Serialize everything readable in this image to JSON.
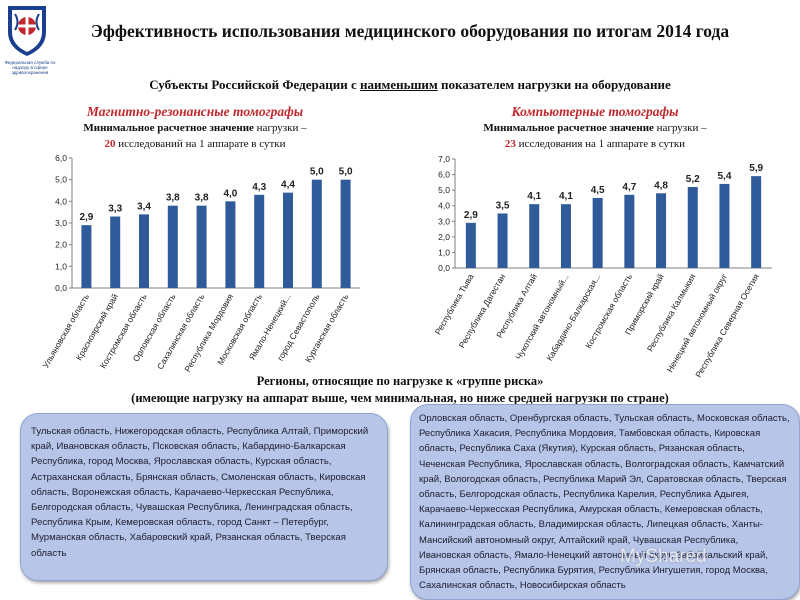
{
  "logo": {
    "caption": "Федеральная служба по надзору в сфере здравоохранения",
    "colors": {
      "shield": "#1b3f8f",
      "accent": "#c0282d"
    }
  },
  "title": "Эффективность использования медицинского оборудования по итогам 2014 года",
  "subtitle": {
    "before": "Субъекты Российской Федерации с ",
    "underlined": "наименьшим",
    "after": " показателем нагрузки на оборудование"
  },
  "mri": {
    "heading": "Магнитно-резонансные томографы",
    "note_bold": "Минимальное расчетное значение",
    "note_mid": " нагрузки –",
    "note_num": "20",
    "note_tail": " исследований на 1 аппарате в сутки"
  },
  "ct": {
    "heading": "Компьютерные томографы",
    "note_bold": "Минимальное расчетное значение",
    "note_mid": " нагрузки –",
    "note_num": "23",
    "note_tail": " исследования на 1 аппарате в сутки"
  },
  "chart_data": [
    {
      "type": "bar",
      "title": "Магнитно-резонансные томографы",
      "categories": [
        "Ульяновская область",
        "Красноярский край",
        "Костромская область",
        "Орловская область",
        "Сахалинская область",
        "Республика Мордовия",
        "Московская область",
        "Ямало-Ненецкий...",
        "город Севастополь",
        "Курганская область"
      ],
      "values": [
        2.9,
        3.3,
        3.4,
        3.8,
        3.8,
        4.0,
        4.3,
        4.4,
        5.0,
        5.0
      ],
      "labels": [
        "2,9",
        "3,3",
        "3,4",
        "3,8",
        "3,8",
        "4,0",
        "4,3",
        "4,4",
        "5,0",
        "5,0"
      ],
      "yticks": [
        "0,0",
        "1,0",
        "2,0",
        "3,0",
        "4,0",
        "5,0",
        "6,0"
      ],
      "ylim": [
        0,
        6
      ],
      "bar_color": "#2f5b9a",
      "grid": false
    },
    {
      "type": "bar",
      "title": "Компьютерные томографы",
      "categories": [
        "Республика Тыва",
        "Республика Дагестан",
        "Республика Алтай",
        "Чукотский автономный...",
        "Кабардино-Балкарская...",
        "Костромская область",
        "Приморский край",
        "Республика Калмыкия",
        "Ненецкий автономный округ",
        "Республика Северная Осетия"
      ],
      "values": [
        2.9,
        3.5,
        4.1,
        4.1,
        4.5,
        4.7,
        4.8,
        5.2,
        5.4,
        5.9
      ],
      "labels": [
        "2,9",
        "3,5",
        "4,1",
        "4,1",
        "4,5",
        "4,7",
        "4,8",
        "5,2",
        "5,4",
        "5,9"
      ],
      "yticks": [
        "0,0",
        "1,0",
        "2,0",
        "3,0",
        "4,0",
        "5,0",
        "6,0",
        "7,0"
      ],
      "ylim": [
        0,
        7
      ],
      "bar_color": "#2f5b9a",
      "grid": false
    }
  ],
  "risk": {
    "line1": "Регионы, относящие по нагрузке к «группе риска»",
    "line2": "(имеющие нагрузку на аппарат выше, чем минимальная, но ниже средней нагрузки по стране)"
  },
  "regions_mri": "Тульская область, Нижегородская область, Республика Алтай, Приморский край, Ивановская область, Псковская область, Кабардино-Балкарская Республика, город Москва, Ярославская область, Курская область, Астраханская область, Брянская область, Смоленская область, Кировская область, Воронежская область, Карачаево-Черкесская Республика, Белгородская область, Чувашская Республика, Ленинградская область, Республика Крым, Кемеровская область, город Санкт – Петербург, Мурманская область, Хабаровский край, Рязанская область, Тверская область",
  "regions_ct": "Орловская область, Оренбургская область, Тульская область, Московская область, Республика Хакасия, Республика Мордовия, Тамбовская область, Кировская область, Республика Саха (Якутия), Курская область, Рязанская область, Чеченская Республика, Ярославская область, Волгоградская область, Камчатский край, Вологодская область, Республика Марий Эл, Саратовская область, Тверская область, Белгородская область, Республика Карелия, Республика Адыгея, Карачаево-Черкесская Республика, Амурская область, Кемеровская область, Калининградская область, Владимирская область, Липецкая область, Ханты-Мансийский автономный округ, Алтайский край, Чувашская Республика, Ивановская область, Ямало-Ненецкий автономный округ, Забайкальский край, Брянская область, Республика Бурятия, Республика Ингушетия, город Москва, Сахалинская область, Новосибирская область",
  "watermark": "MyShared"
}
